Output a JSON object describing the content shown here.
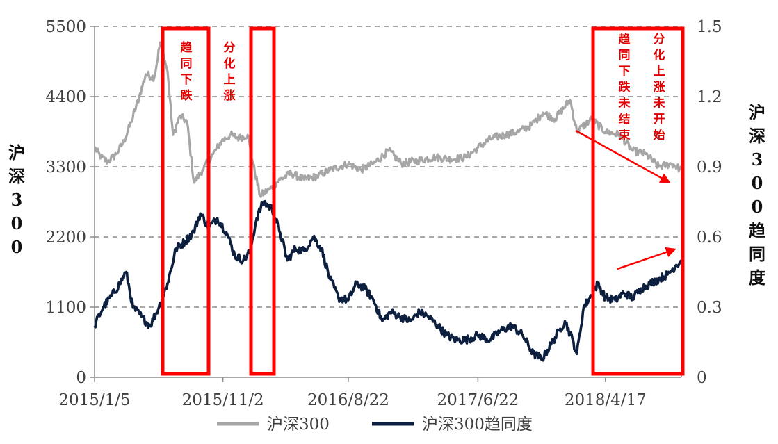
{
  "chart_data": {
    "type": "line",
    "x_ticks": [
      "2015/1/5",
      "2015/11/2",
      "2016/8/22",
      "2017/6/22",
      "2018/4/17"
    ],
    "x_range": [
      "2015-01-05",
      "2018-10-12"
    ],
    "y_left": {
      "label": "沪深300",
      "ticks": [
        "0",
        "1100",
        "2200",
        "3300",
        "4400",
        "5500"
      ],
      "range": [
        0,
        5500
      ]
    },
    "y_right": {
      "label": "沪深300趋同度",
      "ticks": [
        "0",
        "0.3",
        "0.6",
        "0.9",
        "1.2",
        "1.5"
      ],
      "range": [
        0,
        1.5
      ]
    },
    "grid": "horizontal-dashed",
    "legend_placement": "bottom",
    "series": [
      {
        "name": "沪深300",
        "axis": "left",
        "color": "#a6a6a6",
        "points": [
          [
            "2015-01-05",
            3600
          ],
          [
            "2015-01-20",
            3450
          ],
          [
            "2015-02-05",
            3380
          ],
          [
            "2015-02-25",
            3500
          ],
          [
            "2015-03-15",
            3700
          ],
          [
            "2015-04-01",
            4000
          ],
          [
            "2015-04-20",
            4400
          ],
          [
            "2015-05-05",
            4750
          ],
          [
            "2015-05-25",
            4700
          ],
          [
            "2015-06-08",
            5250
          ],
          [
            "2015-06-25",
            4800
          ],
          [
            "2015-07-08",
            3800
          ],
          [
            "2015-07-25",
            4100
          ],
          [
            "2015-08-10",
            4000
          ],
          [
            "2015-08-26",
            3050
          ],
          [
            "2015-09-15",
            3250
          ],
          [
            "2015-10-10",
            3500
          ],
          [
            "2015-10-30",
            3700
          ],
          [
            "2015-11-20",
            3800
          ],
          [
            "2015-12-10",
            3750
          ],
          [
            "2015-12-30",
            3800
          ],
          [
            "2016-01-10",
            3400
          ],
          [
            "2016-01-28",
            2850
          ],
          [
            "2016-02-20",
            2950
          ],
          [
            "2016-03-15",
            3100
          ],
          [
            "2016-04-10",
            3200
          ],
          [
            "2016-05-10",
            3100
          ],
          [
            "2016-06-10",
            3150
          ],
          [
            "2016-07-10",
            3250
          ],
          [
            "2016-08-22",
            3350
          ],
          [
            "2016-09-20",
            3250
          ],
          [
            "2016-10-20",
            3350
          ],
          [
            "2016-11-25",
            3550
          ],
          [
            "2016-12-25",
            3350
          ],
          [
            "2017-02-01",
            3400
          ],
          [
            "2017-03-15",
            3450
          ],
          [
            "2017-04-20",
            3420
          ],
          [
            "2017-05-25",
            3450
          ],
          [
            "2017-06-22",
            3600
          ],
          [
            "2017-07-25",
            3750
          ],
          [
            "2017-08-25",
            3800
          ],
          [
            "2017-09-25",
            3850
          ],
          [
            "2017-10-25",
            3950
          ],
          [
            "2017-11-22",
            4150
          ],
          [
            "2017-12-20",
            4050
          ],
          [
            "2018-01-24",
            4350
          ],
          [
            "2018-02-09",
            3850
          ],
          [
            "2018-03-15",
            4050
          ],
          [
            "2018-04-17",
            3850
          ],
          [
            "2018-05-20",
            3800
          ],
          [
            "2018-06-20",
            3550
          ],
          [
            "2018-07-20",
            3500
          ],
          [
            "2018-08-20",
            3300
          ],
          [
            "2018-09-20",
            3350
          ],
          [
            "2018-10-12",
            3250
          ]
        ]
      },
      {
        "name": "沪深300趋同度",
        "axis": "right",
        "color": "#0c1f3f",
        "points": [
          [
            "2015-01-05",
            0.22
          ],
          [
            "2015-01-25",
            0.3
          ],
          [
            "2015-02-15",
            0.35
          ],
          [
            "2015-03-05",
            0.4
          ],
          [
            "2015-03-20",
            0.45
          ],
          [
            "2015-04-05",
            0.3
          ],
          [
            "2015-04-25",
            0.26
          ],
          [
            "2015-05-15",
            0.22
          ],
          [
            "2015-06-05",
            0.3
          ],
          [
            "2015-06-25",
            0.4
          ],
          [
            "2015-07-15",
            0.55
          ],
          [
            "2015-08-05",
            0.58
          ],
          [
            "2015-08-25",
            0.62
          ],
          [
            "2015-09-10",
            0.7
          ],
          [
            "2015-09-30",
            0.64
          ],
          [
            "2015-10-20",
            0.68
          ],
          [
            "2015-11-10",
            0.62
          ],
          [
            "2015-11-30",
            0.52
          ],
          [
            "2015-12-20",
            0.5
          ],
          [
            "2016-01-05",
            0.54
          ],
          [
            "2016-01-20",
            0.68
          ],
          [
            "2016-02-05",
            0.75
          ],
          [
            "2016-02-25",
            0.72
          ],
          [
            "2016-03-15",
            0.62
          ],
          [
            "2016-04-01",
            0.5
          ],
          [
            "2016-04-20",
            0.55
          ],
          [
            "2016-05-10",
            0.54
          ],
          [
            "2016-06-01",
            0.6
          ],
          [
            "2016-06-20",
            0.55
          ],
          [
            "2016-07-10",
            0.42
          ],
          [
            "2016-07-30",
            0.34
          ],
          [
            "2016-08-22",
            0.33
          ],
          [
            "2016-09-10",
            0.4
          ],
          [
            "2016-09-30",
            0.38
          ],
          [
            "2016-10-20",
            0.33
          ],
          [
            "2016-11-10",
            0.24
          ],
          [
            "2016-11-30",
            0.28
          ],
          [
            "2016-12-20",
            0.26
          ],
          [
            "2017-01-15",
            0.24
          ],
          [
            "2017-02-05",
            0.28
          ],
          [
            "2017-02-25",
            0.26
          ],
          [
            "2017-03-20",
            0.22
          ],
          [
            "2017-04-10",
            0.18
          ],
          [
            "2017-05-01",
            0.16
          ],
          [
            "2017-05-25",
            0.16
          ],
          [
            "2017-06-22",
            0.18
          ],
          [
            "2017-07-20",
            0.16
          ],
          [
            "2017-08-15",
            0.2
          ],
          [
            "2017-09-10",
            0.22
          ],
          [
            "2017-10-05",
            0.18
          ],
          [
            "2017-10-30",
            0.1
          ],
          [
            "2017-11-20",
            0.08
          ],
          [
            "2017-12-10",
            0.14
          ],
          [
            "2017-12-30",
            0.2
          ],
          [
            "2018-01-12",
            0.24
          ],
          [
            "2018-01-30",
            0.16
          ],
          [
            "2018-02-09",
            0.1
          ],
          [
            "2018-02-25",
            0.3
          ],
          [
            "2018-03-15",
            0.35
          ],
          [
            "2018-03-30",
            0.4
          ],
          [
            "2018-04-17",
            0.34
          ],
          [
            "2018-05-10",
            0.33
          ],
          [
            "2018-05-30",
            0.36
          ],
          [
            "2018-06-20",
            0.34
          ],
          [
            "2018-07-10",
            0.38
          ],
          [
            "2018-07-30",
            0.4
          ],
          [
            "2018-08-20",
            0.42
          ],
          [
            "2018-09-10",
            0.44
          ],
          [
            "2018-09-30",
            0.48
          ],
          [
            "2018-10-12",
            0.5
          ]
        ]
      }
    ],
    "annotations": [
      {
        "text": "趋同下跌",
        "box_from": "2015-06-08",
        "box_to": "2015-09-15"
      },
      {
        "text": "分化上涨",
        "box_from": "2015-12-01",
        "box_to": "2016-01-20"
      },
      {
        "text": "趋同下跌未结束",
        "box_from": "2018-01-24",
        "box_to": "2018-10-12"
      },
      {
        "text": "分化上涨未开始",
        "box_from": "2018-01-24",
        "box_to": "2018-10-12"
      }
    ],
    "highlight_color": "#ff0000"
  }
}
